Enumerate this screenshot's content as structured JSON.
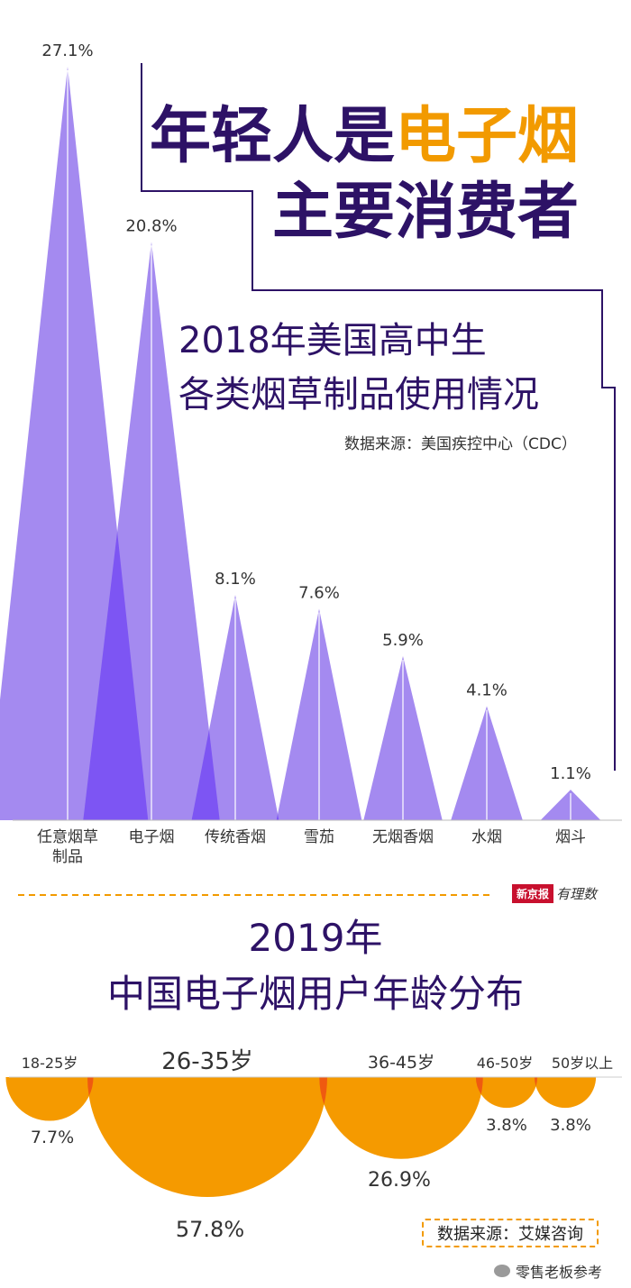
{
  "headline": {
    "line1_a": "年轻人是",
    "line1_b": "电子烟",
    "line2": "主要消费者"
  },
  "section1": {
    "title_line1": "2018年美国高中生",
    "title_line2": "各类烟草制品使用情况",
    "source": "数据来源：美国疾控中心（CDC）"
  },
  "logo": {
    "box": "新京报",
    "script": "有理数"
  },
  "section2": {
    "title_line1": "2019年",
    "title_line2": "中国电子烟用户年龄分布",
    "source": "数据来源：艾媒咨询"
  },
  "watermark": "零售老板参考",
  "colors": {
    "purple": "#a48af0",
    "purple_overlap": "#7d55f3",
    "orange": "#f59a00",
    "orange_overlap": "#ef5a10",
    "navy": "#2d1266"
  },
  "chart_data": [
    {
      "type": "area",
      "shape": "triangles",
      "title": "2018年美国高中生各类烟草制品使用情况",
      "categories": [
        "任意烟草制品",
        "电子烟",
        "传统香烟",
        "雪茄",
        "无烟香烟",
        "水烟",
        "烟斗"
      ],
      "values": [
        27.1,
        20.8,
        8.1,
        7.6,
        5.9,
        4.1,
        1.1
      ],
      "value_labels": [
        "27.1%",
        "20.8%",
        "8.1%",
        "7.6%",
        "5.9%",
        "4.1%",
        "1.1%"
      ],
      "category_label_lines": [
        [
          "任意烟草",
          "制品"
        ],
        [
          "电子烟"
        ],
        [
          "传统香烟"
        ],
        [
          "雪茄"
        ],
        [
          "无烟香烟"
        ],
        [
          "水烟"
        ],
        [
          "烟斗"
        ]
      ],
      "unit": "%",
      "grid": false
    },
    {
      "type": "pie",
      "shape": "semicircles",
      "title": "2019年中国电子烟用户年龄分布",
      "categories": [
        "18-25岁",
        "26-35岁",
        "36-45岁",
        "46-50岁",
        "50岁以上"
      ],
      "values": [
        7.7,
        57.8,
        26.9,
        3.8,
        3.8
      ],
      "value_labels": [
        "7.7%",
        "57.8%",
        "26.9%",
        "3.8%",
        "3.8%"
      ],
      "unit": "%"
    }
  ]
}
